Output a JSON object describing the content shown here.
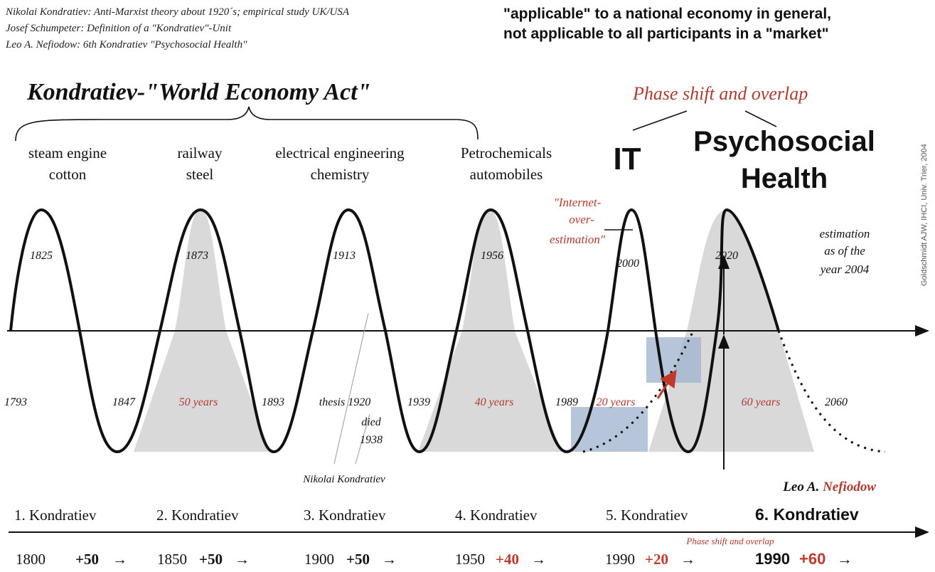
{
  "credits": [
    "Nikolai Kondratiev: Anti-Marxist theory about 1920´s; empirical study UK/USA",
    "Josef Schumpeter: Definition of a \"Kondratiev\"-Unit",
    "Leo A. Nefiodow: 6th Kondratiev \"Psychosocial Health\""
  ],
  "headline": [
    "\"applicable\" to a national economy in general,",
    "not applicable to all participants in a \"market\""
  ],
  "main_title": "Kondratiev-\"World Economy Act\"",
  "phase_title": "Phase shift and overlap",
  "watermark": "Goldschmidt AJW, IHCI, Univ. Trier, 2004",
  "waves": [
    {
      "label": [
        "steam engine",
        "cotton"
      ],
      "peak_year": "1825"
    },
    {
      "label": [
        "railway",
        "steel"
      ],
      "peak_year": "1873"
    },
    {
      "label": [
        "electrical engineering",
        "chemistry"
      ],
      "peak_year": "1913"
    },
    {
      "label": [
        "Petrochemicals",
        "automobiles"
      ],
      "peak_year": "1956"
    },
    {
      "label": [
        "IT"
      ],
      "peak_year": "2000"
    },
    {
      "label": [
        "Psychosocial",
        "Health"
      ],
      "peak_year": "2020"
    }
  ],
  "internet_note": [
    "\"Internet-",
    "over-",
    "estimation\""
  ],
  "estimation_note": [
    "estimation",
    "as of the",
    "year 2004"
  ],
  "axis_years": [
    "1793",
    "1847",
    "1893",
    "1939",
    "1989",
    "2060"
  ],
  "thesis_label": "thesis 1920",
  "died_label": [
    "died",
    "1938"
  ],
  "person_label": "Nikolai Kondratiev",
  "durations": [
    "50 years",
    "40 years",
    "20 years",
    "60 years"
  ],
  "nefiodow": {
    "first": "Leo A. ",
    "last": "Nefiodow"
  },
  "kondratiev_labels": [
    "1. Kondratiev",
    "2. Kondratiev",
    "3. Kondratiev",
    "4. Kondratiev",
    "5. Kondratiev",
    "6. Kondratiev"
  ],
  "phase_small": "Phase shift and overlap",
  "timeline": [
    {
      "year": "1800",
      "delta": "+50",
      "arrow": "→"
    },
    {
      "year": "1850",
      "delta": "+50",
      "arrow": "→"
    },
    {
      "year": "1900",
      "delta": "+50",
      "arrow": "→"
    },
    {
      "year": "1950",
      "delta": "+40",
      "arrow": "→"
    },
    {
      "year": "1990",
      "delta": "+20",
      "arrow": "→"
    },
    {
      "year": "1990",
      "delta": "+60",
      "arrow": "→"
    }
  ],
  "colors": {
    "ink": "#111111",
    "accent_red": "#b03a2e",
    "shade_gray": "#d9d9d9",
    "shade_blue": "#9fb1cf"
  }
}
